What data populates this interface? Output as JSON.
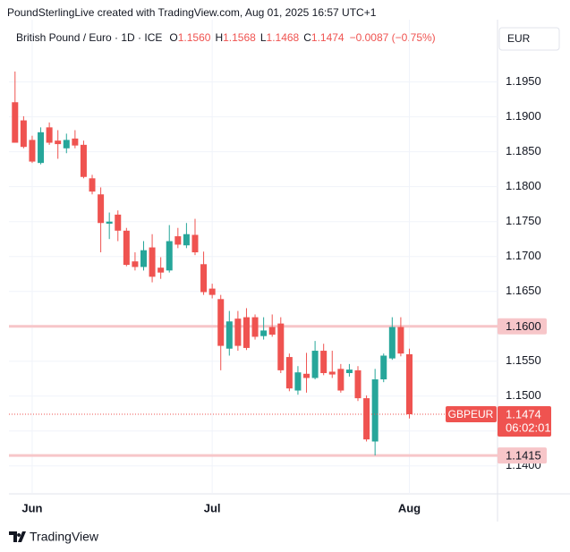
{
  "header": "PoundSterlingLive created with TradingView.com, Aug 01, 2025 16:57 UTC+1",
  "legend": {
    "title": "British Pound / Euro · 1D · ICE",
    "items": [
      {
        "key": "O",
        "value": "1.1560"
      },
      {
        "key": "H",
        "value": "1.1568"
      },
      {
        "key": "L",
        "value": "1.1468"
      },
      {
        "key": "C",
        "value": "1.1474"
      }
    ],
    "change": "−0.0087 (−0.75%)"
  },
  "currency": "EUR",
  "logo": "TradingView",
  "chart_data": {
    "type": "candlestick",
    "categories": [
      null,
      null,
      "Jun",
      null,
      null,
      null,
      null,
      null,
      null,
      null,
      null,
      null,
      null,
      null,
      null,
      null,
      null,
      null,
      null,
      null,
      null,
      null,
      null,
      "Jul",
      null,
      null,
      null,
      null,
      null,
      null,
      null,
      null,
      null,
      null,
      null,
      null,
      null,
      null,
      null,
      null,
      null,
      null,
      null,
      null,
      null,
      null,
      "Aug"
    ],
    "open": [
      1.1921,
      1.1895,
      1.1867,
      1.1834,
      1.1885,
      1.1866,
      1.1855,
      1.1869,
      1.186,
      1.1812,
      1.1789,
      1.1747,
      1.176,
      1.1737,
      1.1693,
      1.1685,
      1.1713,
      1.1684,
      1.168,
      1.1729,
      1.1716,
      1.1731,
      1.1689,
      1.1654,
      1.1639,
      1.1568,
      1.1611,
      1.1613,
      1.1613,
      1.1586,
      1.1599,
      1.1604,
      1.1556,
      1.1508,
      1.1532,
      1.1526,
      1.1565,
      1.1535,
      1.1539,
      1.1533,
      1.1537,
      1.1497,
      1.1435,
      1.1524,
      1.1554,
      1.1599,
      1.156
    ],
    "high": [
      1.1965,
      1.1901,
      1.1873,
      1.1885,
      1.1892,
      1.1881,
      1.1876,
      1.1881,
      1.1866,
      1.1817,
      1.1799,
      1.1763,
      1.1766,
      1.1741,
      1.1706,
      1.1722,
      1.1732,
      1.1699,
      1.1745,
      1.1741,
      1.1748,
      1.1754,
      1.1707,
      1.1661,
      1.1645,
      1.1622,
      1.1622,
      1.1626,
      1.1617,
      1.1613,
      1.1617,
      1.1613,
      1.1561,
      1.1543,
      1.1562,
      1.1579,
      1.1575,
      1.1565,
      1.1546,
      1.1546,
      1.1543,
      1.1501,
      1.1539,
      1.1561,
      1.1613,
      1.1613,
      1.1568
    ],
    "low": [
      1.1863,
      1.1855,
      1.1834,
      1.1832,
      1.186,
      1.184,
      1.1848,
      1.1855,
      1.1812,
      1.1789,
      1.1706,
      1.1725,
      1.1722,
      1.1686,
      1.168,
      1.168,
      1.1663,
      1.1668,
      1.1677,
      1.1712,
      1.1712,
      1.1702,
      1.1645,
      1.164,
      1.1537,
      1.1558,
      1.1565,
      1.1566,
      1.1581,
      1.1581,
      1.1585,
      1.1533,
      1.1507,
      1.1502,
      1.1505,
      1.1524,
      1.153,
      1.1526,
      1.1505,
      1.1528,
      1.1493,
      1.1435,
      1.1415,
      1.152,
      1.1552,
      1.1557,
      1.1468
    ],
    "close": [
      1.1863,
      1.1857,
      1.1836,
      1.1878,
      1.1863,
      1.1861,
      1.1867,
      1.1859,
      1.1814,
      1.1793,
      1.1748,
      1.175,
      1.1737,
      1.1688,
      1.1685,
      1.1709,
      1.1671,
      1.1677,
      1.1722,
      1.1717,
      1.1732,
      1.1706,
      1.1649,
      1.1645,
      1.1572,
      1.1607,
      1.1572,
      1.1569,
      1.1585,
      1.1594,
      1.1588,
      1.1537,
      1.1511,
      1.1534,
      1.1526,
      1.1565,
      1.1533,
      1.1531,
      1.1508,
      1.1538,
      1.1497,
      1.1438,
      1.1524,
      1.1558,
      1.1599,
      1.1561,
      1.1474
    ],
    "up_color": "#26a69a",
    "down_color": "#ef5350",
    "ylim": [
      1.136,
      1.2029
    ],
    "yticks": [
      {
        "value": 1.14,
        "label": "1.1400"
      },
      {
        "value": 1.145,
        "label": "1.1450"
      },
      {
        "value": 1.15,
        "label": "1.1500"
      },
      {
        "value": 1.155,
        "label": "1.1550"
      },
      {
        "value": 1.16,
        "label": "1.1600"
      },
      {
        "value": 1.165,
        "label": "1.1650"
      },
      {
        "value": 1.17,
        "label": "1.1700"
      },
      {
        "value": 1.175,
        "label": "1.1750"
      },
      {
        "value": 1.18,
        "label": "1.1800"
      },
      {
        "value": 1.185,
        "label": "1.1850"
      },
      {
        "value": 1.19,
        "label": "1.1900"
      },
      {
        "value": 1.195,
        "label": "1.1950"
      }
    ],
    "grid": true,
    "levels": [
      {
        "value": 1.16,
        "label": "1.1600"
      },
      {
        "value": 1.1415,
        "label": "1.1415"
      }
    ],
    "level_color": "#f7c6c9",
    "price": {
      "value": 1.1474,
      "label": "1.1474",
      "symbol": "GBPEUR",
      "countdown": "06:02:01"
    }
  }
}
